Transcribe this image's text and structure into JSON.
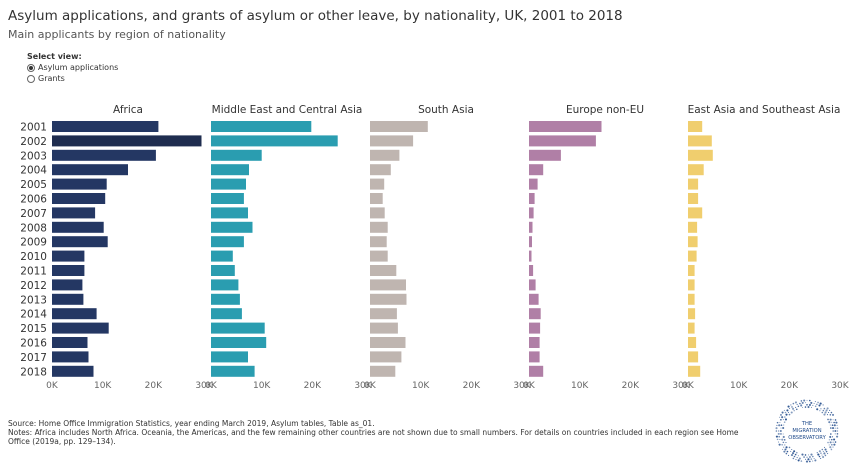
{
  "header": {
    "title": "Asylum applications, and grants of asylum or other leave, by nationality, UK, 2001 to 2018",
    "subtitle": "Main applicants by region of nationality"
  },
  "view_select": {
    "label": "Select view:",
    "options": [
      {
        "label": "Asylum applications",
        "selected": true
      },
      {
        "label": "Grants",
        "selected": false
      }
    ]
  },
  "chart_data": {
    "type": "bar",
    "orientation": "horizontal",
    "categories": [
      "2001",
      "2002",
      "2003",
      "2004",
      "2005",
      "2006",
      "2007",
      "2008",
      "2009",
      "2010",
      "2011",
      "2012",
      "2013",
      "2014",
      "2015",
      "2016",
      "2017",
      "2018"
    ],
    "xlim": [
      0,
      30000
    ],
    "x_ticks": [
      "0K",
      "10K",
      "20K",
      "30K"
    ],
    "series": [
      {
        "name": "Africa",
        "color": "#243763",
        "highlight_color": "#1f2d4f",
        "values": [
          21000,
          29500,
          20500,
          15000,
          10800,
          10500,
          8500,
          10200,
          11000,
          6400,
          6400,
          6000,
          6200,
          8800,
          11200,
          7000,
          7200,
          8200
        ]
      },
      {
        "name": "Middle East and Central Asia",
        "color": "#2a9db0",
        "values": [
          19800,
          25000,
          10000,
          7500,
          6900,
          6500,
          7300,
          8200,
          6500,
          4300,
          4700,
          5400,
          5700,
          6100,
          10600,
          10900,
          7300,
          8600
        ]
      },
      {
        "name": "South Asia",
        "color": "#bfb5b0",
        "values": [
          11400,
          8500,
          5800,
          4100,
          2800,
          2500,
          2900,
          3500,
          3300,
          3500,
          5200,
          7100,
          7200,
          5300,
          5500,
          7000,
          6200,
          5000
        ]
      },
      {
        "name": "Europe non-EU",
        "color": "#b07fa6",
        "values": [
          14300,
          13200,
          6300,
          2800,
          1700,
          1100,
          900,
          700,
          600,
          500,
          800,
          1300,
          1900,
          2300,
          2200,
          2100,
          2100,
          2800
        ]
      },
      {
        "name": "East Asia and Southeast Asia",
        "color": "#f0ce6e",
        "values": [
          2800,
          4700,
          4900,
          3100,
          2000,
          2000,
          2800,
          1800,
          1900,
          1700,
          1300,
          1300,
          1300,
          1400,
          1300,
          1600,
          2000,
          2400
        ]
      }
    ]
  },
  "footer": {
    "source": "Source: Home Office Immigration Statistics, year ending March 2019, Asylum tables, Table as_01.",
    "notes": "Notes: Africa includes North Africa. Oceania, the Americas, and the few remaining other countries are not shown due to small numbers. For details on countries included in each region see Home Office (2019a, pp. 129–134)."
  },
  "logo": {
    "line1": "THE",
    "line2": "MIGRATION",
    "line3": "OBSERVATORY"
  }
}
